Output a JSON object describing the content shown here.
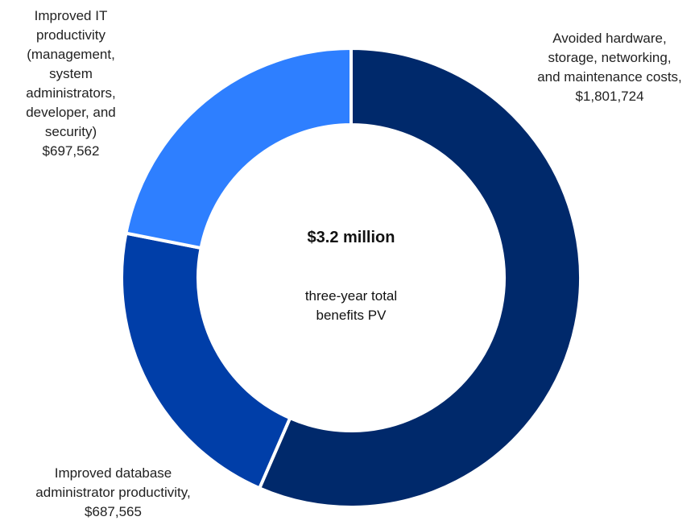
{
  "chart_data": {
    "type": "pie",
    "center_title": "$3.2 million",
    "center_subtitle": "three-year total benefits PV",
    "categories": [
      "Avoided hardware, storage, networking, and maintenance costs,",
      "Improved database administrator productivity,",
      "Improved IT productivity (management, system administrators, developer, and security)"
    ],
    "values": [
      1801724,
      687565,
      697562
    ],
    "value_labels": [
      "$1,801,724",
      "$687,565",
      "$697,562"
    ],
    "colors": [
      "#00296b",
      "#003ea8",
      "#2e7fff"
    ]
  }
}
